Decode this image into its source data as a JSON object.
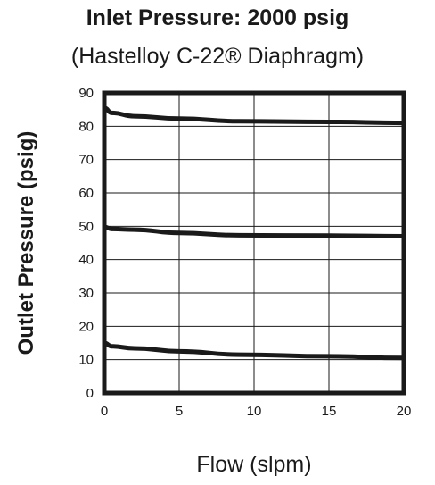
{
  "chart_data": {
    "type": "line",
    "title": "Inlet Pressure:  2000 psig",
    "subtitle": "(Hastelloy C-22® Diaphragm)",
    "xlabel": "Flow (slpm)",
    "ylabel": "Outlet Pressure (psig)",
    "xlim": [
      0,
      20
    ],
    "ylim": [
      0,
      90
    ],
    "xticks": [
      "0",
      "5",
      "10",
      "15",
      "20"
    ],
    "yticks": [
      "0",
      "10",
      "20",
      "30",
      "40",
      "50",
      "60",
      "70",
      "80",
      "90"
    ],
    "grid": true,
    "series": [
      {
        "x": [
          0,
          0.5,
          2,
          5,
          9,
          15,
          20
        ],
        "y": [
          85.5,
          84,
          83,
          82.3,
          81.5,
          81.3,
          81.0
        ]
      },
      {
        "x": [
          0,
          0.5,
          2,
          5,
          9,
          15,
          20
        ],
        "y": [
          49.8,
          49.2,
          49.0,
          48.0,
          47.3,
          47.2,
          47.0
        ]
      },
      {
        "x": [
          0,
          0.5,
          2,
          5,
          9,
          15,
          20
        ],
        "y": [
          15.0,
          14.0,
          13.4,
          12.5,
          11.5,
          11.0,
          10.5
        ]
      }
    ],
    "colors": {
      "line": "#1a1a1a",
      "grid": "#1a1a1a",
      "frame": "#1a1a1a"
    }
  }
}
